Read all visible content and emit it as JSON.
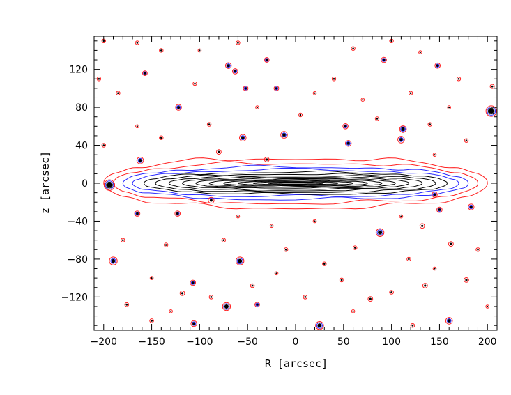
{
  "chart_data": {
    "type": "contour",
    "xlabel": "R [arcsec]",
    "ylabel": "z [arcsec]",
    "xlim": [
      -210,
      210
    ],
    "ylim": [
      -155,
      155
    ],
    "xticks": [
      -200,
      -150,
      -100,
      -50,
      0,
      50,
      100,
      150,
      200
    ],
    "yticks": [
      -120,
      -80,
      -40,
      0,
      40,
      80,
      120
    ],
    "grid": false,
    "contour_colors": {
      "outer": "#ff2020",
      "middle": "#2a2aff",
      "inner": "#000000"
    },
    "disk": {
      "center": [
        0,
        0
      ],
      "contour_levels": [
        {
          "half_length": 200,
          "half_height": 26,
          "color": "#ff2020"
        },
        {
          "half_length": 190,
          "half_height": 21,
          "color": "#ff2020"
        },
        {
          "half_length": 180,
          "half_height": 17,
          "color": "#2a2aff"
        },
        {
          "half_length": 170,
          "half_height": 14,
          "color": "#2a2aff"
        },
        {
          "half_length": 158,
          "half_height": 11.5,
          "color": "#000000"
        },
        {
          "half_length": 146,
          "half_height": 9.5,
          "color": "#000000"
        },
        {
          "half_length": 132,
          "half_height": 7.8,
          "color": "#000000"
        },
        {
          "half_length": 118,
          "half_height": 6.3,
          "color": "#000000"
        },
        {
          "half_length": 104,
          "half_height": 5.0,
          "color": "#000000"
        },
        {
          "half_length": 90,
          "half_height": 3.9,
          "color": "#000000"
        },
        {
          "half_length": 75,
          "half_height": 2.9,
          "color": "#000000"
        },
        {
          "half_length": 60,
          "half_height": 2.1,
          "color": "#000000"
        },
        {
          "half_length": 44,
          "half_height": 1.4,
          "color": "#000000"
        },
        {
          "half_length": 28,
          "half_height": 0.8,
          "color": "#000000"
        }
      ]
    },
    "sources": [
      {
        "x": -194,
        "y": -2,
        "size": 4,
        "rings": 4
      },
      {
        "x": 204,
        "y": 76,
        "size": 4,
        "rings": 4
      },
      {
        "x": -72,
        "y": -130,
        "size": 3,
        "rings": 3
      },
      {
        "x": 25,
        "y": -150,
        "size": 3,
        "rings": 3
      },
      {
        "x": 88,
        "y": -52,
        "size": 3,
        "rings": 3
      },
      {
        "x": -58,
        "y": -82,
        "size": 3,
        "rings": 3
      },
      {
        "x": -190,
        "y": -82,
        "size": 3,
        "rings": 2
      },
      {
        "x": -162,
        "y": 24,
        "size": 2.5,
        "rings": 2
      },
      {
        "x": 112,
        "y": 57,
        "size": 2.5,
        "rings": 3
      },
      {
        "x": 110,
        "y": 46,
        "size": 2.5,
        "rings": 2
      },
      {
        "x": -12,
        "y": 51,
        "size": 2.5,
        "rings": 2
      },
      {
        "x": -55,
        "y": 48,
        "size": 2.5,
        "rings": 2
      },
      {
        "x": 55,
        "y": 42,
        "size": 2.2,
        "rings": 2
      },
      {
        "x": 52,
        "y": 60,
        "size": 2,
        "rings": 2
      },
      {
        "x": -122,
        "y": 80,
        "size": 2.2,
        "rings": 2
      },
      {
        "x": -70,
        "y": 124,
        "size": 2.2,
        "rings": 2
      },
      {
        "x": -63,
        "y": 118,
        "size": 2,
        "rings": 2
      },
      {
        "x": 160,
        "y": -145,
        "size": 2.5,
        "rings": 2
      },
      {
        "x": -106,
        "y": -148,
        "size": 2.2,
        "rings": 2
      },
      {
        "x": 183,
        "y": -25,
        "size": 2.2,
        "rings": 2
      },
      {
        "x": 145,
        "y": -12,
        "size": 2,
        "rings": 2
      },
      {
        "x": 150,
        "y": -28,
        "size": 2,
        "rings": 2
      },
      {
        "x": -165,
        "y": -32,
        "size": 2,
        "rings": 2
      },
      {
        "x": -123,
        "y": -32,
        "size": 2,
        "rings": 2
      },
      {
        "x": -107,
        "y": -105,
        "size": 2,
        "rings": 2
      },
      {
        "x": -88,
        "y": -18,
        "size": 2.2,
        "rings": 1
      },
      {
        "x": 148,
        "y": 124,
        "size": 2,
        "rings": 2
      },
      {
        "x": 92,
        "y": 130,
        "size": 2,
        "rings": 2
      },
      {
        "x": -30,
        "y": 130,
        "size": 1.8,
        "rings": 2
      },
      {
        "x": -52,
        "y": 100,
        "size": 1.8,
        "rings": 2
      },
      {
        "x": -20,
        "y": 100,
        "size": 1.8,
        "rings": 2
      },
      {
        "x": -157,
        "y": 116,
        "size": 1.8,
        "rings": 2
      },
      {
        "x": -40,
        "y": -128,
        "size": 1.8,
        "rings": 2
      },
      {
        "x": 78,
        "y": -122,
        "size": 1.8,
        "rings": 1
      },
      {
        "x": 135,
        "y": -108,
        "size": 1.8,
        "rings": 1
      },
      {
        "x": 178,
        "y": -102,
        "size": 1.8,
        "rings": 1
      },
      {
        "x": -80,
        "y": 33,
        "size": 1.8,
        "rings": 1
      },
      {
        "x": -30,
        "y": 25,
        "size": 1.8,
        "rings": 1
      },
      {
        "x": 132,
        "y": -45,
        "size": 1.8,
        "rings": 1
      },
      {
        "x": 162,
        "y": -64,
        "size": 1.8,
        "rings": 1
      },
      {
        "x": -118,
        "y": -116,
        "size": 1.8,
        "rings": 1
      },
      {
        "x": -176,
        "y": -128,
        "size": 1.5,
        "rings": 1
      },
      {
        "x": -150,
        "y": -145,
        "size": 1.5,
        "rings": 1
      },
      {
        "x": -88,
        "y": -120,
        "size": 1.5,
        "rings": 1
      },
      {
        "x": -45,
        "y": -108,
        "size": 1.5,
        "rings": 1
      },
      {
        "x": 10,
        "y": -120,
        "size": 1.5,
        "rings": 1
      },
      {
        "x": 48,
        "y": -102,
        "size": 1.5,
        "rings": 1
      },
      {
        "x": 100,
        "y": -115,
        "size": 1.5,
        "rings": 1
      },
      {
        "x": 122,
        "y": -150,
        "size": 1.5,
        "rings": 1
      },
      {
        "x": -180,
        "y": -60,
        "size": 1.4,
        "rings": 1
      },
      {
        "x": -135,
        "y": -65,
        "size": 1.4,
        "rings": 1
      },
      {
        "x": -75,
        "y": -60,
        "size": 1.4,
        "rings": 1
      },
      {
        "x": -10,
        "y": -70,
        "size": 1.4,
        "rings": 1
      },
      {
        "x": 30,
        "y": -85,
        "size": 1.4,
        "rings": 1
      },
      {
        "x": 62,
        "y": -68,
        "size": 1.4,
        "rings": 1
      },
      {
        "x": 118,
        "y": -80,
        "size": 1.4,
        "rings": 1
      },
      {
        "x": 190,
        "y": -70,
        "size": 1.4,
        "rings": 1
      },
      {
        "x": -200,
        "y": 40,
        "size": 1.4,
        "rings": 1
      },
      {
        "x": -140,
        "y": 48,
        "size": 1.4,
        "rings": 1
      },
      {
        "x": -90,
        "y": 62,
        "size": 1.4,
        "rings": 1
      },
      {
        "x": 5,
        "y": 72,
        "size": 1.4,
        "rings": 1
      },
      {
        "x": 85,
        "y": 68,
        "size": 1.4,
        "rings": 1
      },
      {
        "x": 140,
        "y": 62,
        "size": 1.4,
        "rings": 1
      },
      {
        "x": 178,
        "y": 45,
        "size": 1.4,
        "rings": 1
      },
      {
        "x": -185,
        "y": 95,
        "size": 1.4,
        "rings": 1
      },
      {
        "x": -105,
        "y": 105,
        "size": 1.4,
        "rings": 1
      },
      {
        "x": 40,
        "y": 110,
        "size": 1.4,
        "rings": 1
      },
      {
        "x": 120,
        "y": 95,
        "size": 1.4,
        "rings": 1
      },
      {
        "x": 170,
        "y": 110,
        "size": 1.4,
        "rings": 1
      },
      {
        "x": -140,
        "y": 140,
        "size": 1.4,
        "rings": 1
      },
      {
        "x": -60,
        "y": 148,
        "size": 1.4,
        "rings": 1
      },
      {
        "x": 60,
        "y": 142,
        "size": 1.4,
        "rings": 1
      },
      {
        "x": 100,
        "y": 150,
        "size": 1.4,
        "rings": 1
      },
      {
        "x": 205,
        "y": 102,
        "size": 1.6,
        "rings": 1
      },
      {
        "x": -205,
        "y": 110,
        "size": 1.4,
        "rings": 1
      },
      {
        "x": -165,
        "y": 60,
        "size": 1.2,
        "rings": 1
      },
      {
        "x": 20,
        "y": 95,
        "size": 1.2,
        "rings": 1
      },
      {
        "x": -40,
        "y": 80,
        "size": 1.2,
        "rings": 1
      },
      {
        "x": 70,
        "y": 88,
        "size": 1.2,
        "rings": 1
      },
      {
        "x": 160,
        "y": 80,
        "size": 1.2,
        "rings": 1
      },
      {
        "x": -25,
        "y": -45,
        "size": 1.2,
        "rings": 1
      },
      {
        "x": 20,
        "y": -40,
        "size": 1.2,
        "rings": 1
      },
      {
        "x": -60,
        "y": -35,
        "size": 1.2,
        "rings": 1
      },
      {
        "x": 110,
        "y": -35,
        "size": 1.2,
        "rings": 1
      },
      {
        "x": -150,
        "y": -100,
        "size": 1.2,
        "rings": 1
      },
      {
        "x": -20,
        "y": -95,
        "size": 1.2,
        "rings": 1
      },
      {
        "x": 145,
        "y": -90,
        "size": 1.2,
        "rings": 1
      },
      {
        "x": 200,
        "y": -130,
        "size": 1.2,
        "rings": 1
      },
      {
        "x": -130,
        "y": -135,
        "size": 1.2,
        "rings": 1
      },
      {
        "x": 60,
        "y": -135,
        "size": 1.2,
        "rings": 1
      },
      {
        "x": 145,
        "y": 30,
        "size": 1.2,
        "rings": 1
      },
      {
        "x": -200,
        "y": 150,
        "size": 1.4,
        "rings": 1
      },
      {
        "x": -165,
        "y": 148,
        "size": 1.4,
        "rings": 1
      },
      {
        "x": 130,
        "y": 138,
        "size": 1.2,
        "rings": 1
      },
      {
        "x": -100,
        "y": 140,
        "size": 1.2,
        "rings": 1
      }
    ]
  }
}
